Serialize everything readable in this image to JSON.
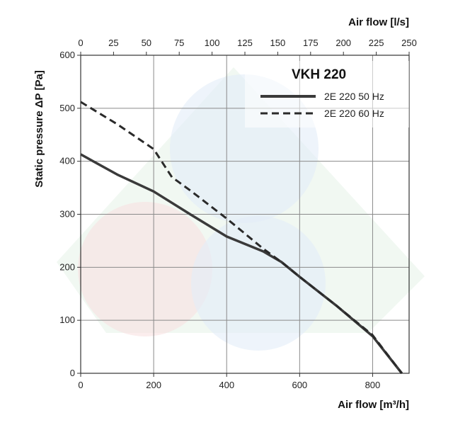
{
  "chart_data": {
    "type": "line",
    "title": "VKH 220",
    "xlabel_bottom": "Air flow [m³/h]",
    "xlabel_top": "Air flow [l/s]",
    "ylabel": "Static pressure ΔP [Pa]",
    "xlim": [
      0,
      900
    ],
    "ylim": [
      0,
      600
    ],
    "x_ticks": [
      "0",
      "200",
      "400",
      "600",
      "800"
    ],
    "x_top_ticks": [
      "0",
      "25",
      "50",
      "75",
      "100",
      "125",
      "150",
      "175",
      "200",
      "225",
      "250"
    ],
    "y_ticks": [
      "0",
      "100",
      "200",
      "300",
      "400",
      "500",
      "600"
    ],
    "legend_position": "top-right",
    "series": [
      {
        "name": "2E 220 50 Hz",
        "style": "solid",
        "color": "#3a3a3a",
        "x": [
          0,
          100,
          200,
          300,
          400,
          500,
          550,
          600,
          700,
          800,
          880
        ],
        "y": [
          413,
          375,
          343,
          300,
          258,
          230,
          210,
          182,
          128,
          70,
          0
        ]
      },
      {
        "name": "2E 220 60 Hz",
        "style": "dashed",
        "color": "#2a2a2a",
        "x": [
          0,
          100,
          200,
          250,
          300,
          400,
          500,
          550,
          600,
          700,
          800,
          880
        ],
        "y": [
          512,
          470,
          423,
          370,
          345,
          292,
          235,
          210,
          182,
          128,
          72,
          0
        ]
      }
    ]
  }
}
